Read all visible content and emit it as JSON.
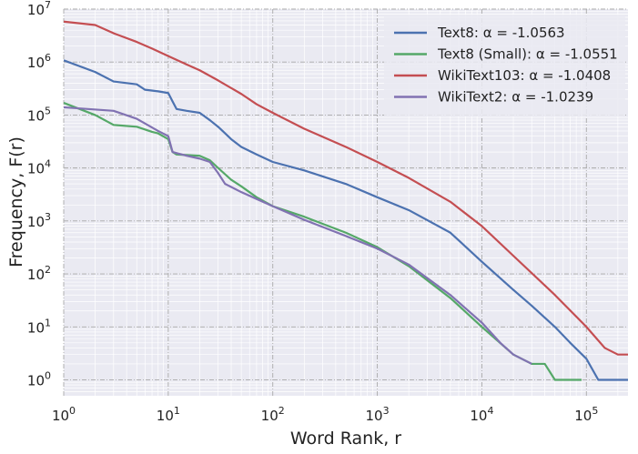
{
  "chart_data": {
    "type": "line",
    "xlabel": "Word Rank, r",
    "ylabel": "Frequency, F(r)",
    "x_scale": "log",
    "y_scale": "log",
    "xlim": [
      1,
      250000
    ],
    "ylim": [
      0.5,
      10000000
    ],
    "grid": true,
    "legend_position": "top-right",
    "x_ticks": [
      {
        "value": 1,
        "base": "10",
        "exp": "0"
      },
      {
        "value": 10,
        "base": "10",
        "exp": "1"
      },
      {
        "value": 100,
        "base": "10",
        "exp": "2"
      },
      {
        "value": 1000,
        "base": "10",
        "exp": "3"
      },
      {
        "value": 10000,
        "base": "10",
        "exp": "4"
      },
      {
        "value": 100000,
        "base": "10",
        "exp": "5"
      }
    ],
    "y_ticks": [
      {
        "value": 1,
        "base": "10",
        "exp": "0"
      },
      {
        "value": 10,
        "base": "10",
        "exp": "1"
      },
      {
        "value": 100,
        "base": "10",
        "exp": "2"
      },
      {
        "value": 1000,
        "base": "10",
        "exp": "3"
      },
      {
        "value": 10000,
        "base": "10",
        "exp": "4"
      },
      {
        "value": 100000,
        "base": "10",
        "exp": "5"
      },
      {
        "value": 1000000,
        "base": "10",
        "exp": "6"
      },
      {
        "value": 10000000,
        "base": "10",
        "exp": "7"
      }
    ],
    "series": [
      {
        "name": "Text8: α = -1.0563",
        "color": "#4c72b0",
        "points": [
          [
            1,
            1080000
          ],
          [
            2,
            650000
          ],
          [
            3,
            430000
          ],
          [
            5,
            380000
          ],
          [
            6,
            300000
          ],
          [
            8,
            280000
          ],
          [
            10,
            260000
          ],
          [
            11,
            180000
          ],
          [
            12,
            130000
          ],
          [
            15,
            120000
          ],
          [
            20,
            110000
          ],
          [
            25,
            80000
          ],
          [
            30,
            60000
          ],
          [
            35,
            45000
          ],
          [
            40,
            35000
          ],
          [
            50,
            25000
          ],
          [
            70,
            18000
          ],
          [
            100,
            13000
          ],
          [
            200,
            9000
          ],
          [
            500,
            5000
          ],
          [
            1000,
            2800
          ],
          [
            2000,
            1600
          ],
          [
            5000,
            600
          ],
          [
            10000,
            170
          ],
          [
            20000,
            50
          ],
          [
            30000,
            25
          ],
          [
            50000,
            10
          ],
          [
            70000,
            5
          ],
          [
            100000,
            2.5
          ],
          [
            130000,
            1
          ],
          [
            250000,
            1
          ]
        ]
      },
      {
        "name": "Text8 (Small): α = -1.0551",
        "color": "#55a868",
        "points": [
          [
            1,
            170000
          ],
          [
            2,
            100000
          ],
          [
            3,
            65000
          ],
          [
            5,
            60000
          ],
          [
            7,
            48000
          ],
          [
            8,
            45000
          ],
          [
            10,
            35000
          ],
          [
            11,
            20000
          ],
          [
            12,
            18000
          ],
          [
            20,
            17000
          ],
          [
            25,
            14000
          ],
          [
            30,
            10000
          ],
          [
            40,
            6000
          ],
          [
            50,
            4500
          ],
          [
            70,
            2800
          ],
          [
            100,
            1900
          ],
          [
            200,
            1200
          ],
          [
            500,
            600
          ],
          [
            1000,
            320
          ],
          [
            2000,
            140
          ],
          [
            5000,
            35
          ],
          [
            10000,
            10
          ],
          [
            20000,
            3
          ],
          [
            30000,
            2
          ],
          [
            40000,
            2
          ],
          [
            50000,
            1
          ],
          [
            90000,
            1
          ]
        ]
      },
      {
        "name": "WikiText103: α = -1.0408",
        "color": "#c44e52",
        "points": [
          [
            1,
            5800000
          ],
          [
            2,
            5000000
          ],
          [
            3,
            3500000
          ],
          [
            5,
            2400000
          ],
          [
            7,
            1800000
          ],
          [
            10,
            1300000
          ],
          [
            15,
            900000
          ],
          [
            20,
            700000
          ],
          [
            30,
            450000
          ],
          [
            50,
            250000
          ],
          [
            70,
            160000
          ],
          [
            100,
            110000
          ],
          [
            200,
            55000
          ],
          [
            500,
            25000
          ],
          [
            1000,
            13000
          ],
          [
            2000,
            6500
          ],
          [
            5000,
            2300
          ],
          [
            10000,
            800
          ],
          [
            20000,
            220
          ],
          [
            50000,
            40
          ],
          [
            100000,
            10
          ],
          [
            150000,
            4
          ],
          [
            200000,
            3
          ],
          [
            250000,
            3
          ]
        ]
      },
      {
        "name": "WikiText2: α = -1.0239",
        "color": "#8172b2",
        "points": [
          [
            1,
            140000
          ],
          [
            3,
            120000
          ],
          [
            5,
            85000
          ],
          [
            8,
            50000
          ],
          [
            10,
            40000
          ],
          [
            11,
            20000
          ],
          [
            15,
            17000
          ],
          [
            20,
            15000
          ],
          [
            25,
            13000
          ],
          [
            30,
            8000
          ],
          [
            35,
            5000
          ],
          [
            50,
            3500
          ],
          [
            70,
            2600
          ],
          [
            100,
            1900
          ],
          [
            200,
            1050
          ],
          [
            500,
            520
          ],
          [
            1000,
            300
          ],
          [
            2000,
            150
          ],
          [
            5000,
            40
          ],
          [
            10000,
            12
          ],
          [
            15000,
            5
          ],
          [
            20000,
            3
          ],
          [
            30000,
            2
          ]
        ]
      }
    ]
  }
}
